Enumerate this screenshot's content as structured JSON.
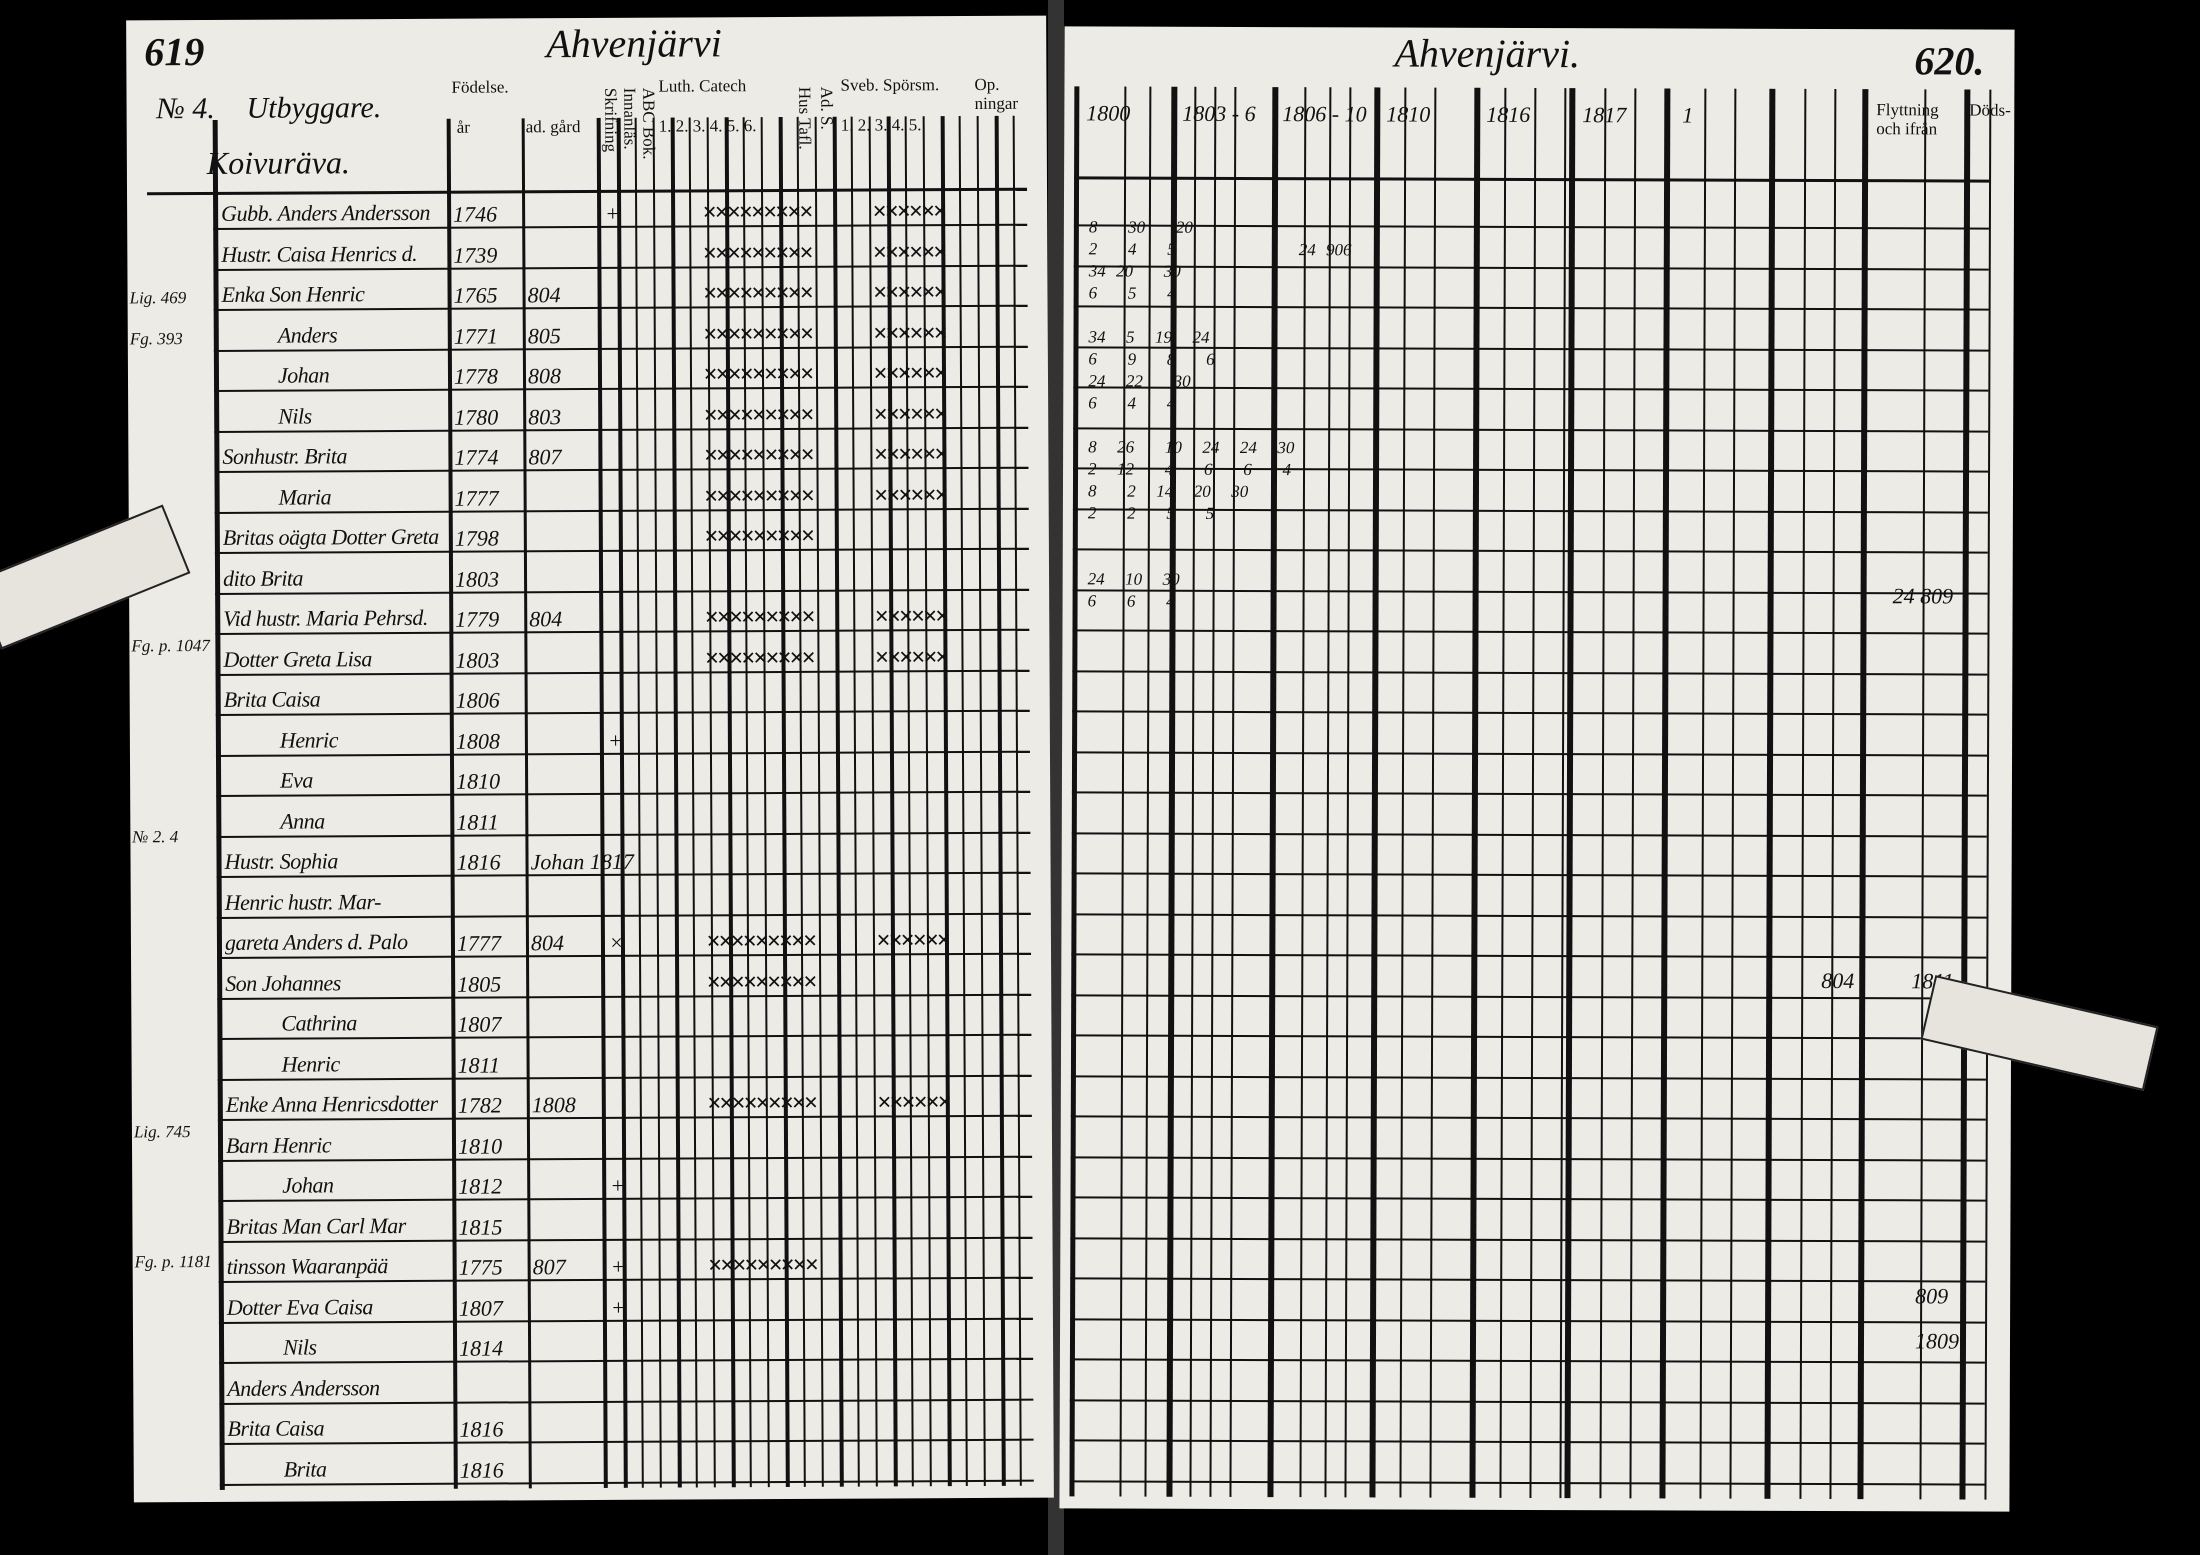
{
  "left_page": {
    "page_number": "619",
    "parish_title": "Ahvenjärvi",
    "household_number": "№ 4.",
    "household_type": "Utbyggare.",
    "farm_name": "Koivuräva.",
    "headers": [
      "Födelse.",
      "år",
      "ad. gård",
      "Skrifning",
      "Innanläs.",
      "ABC Bok.",
      "Luth. Catech",
      "1. 2. 3. 4. 5. 6.",
      "Hus Tafl.",
      "Ad. S.",
      "Sveb. Spörsm.",
      "1. 2. 3. 4. 5.",
      "Op. ningar"
    ],
    "margin_notes": [
      "Lig. 469",
      "Fg. 393",
      "Fg. p. 1047",
      "№ 2. 4",
      "Lig. 745",
      "Fg. p. 1181"
    ],
    "rows": [
      {
        "name": "Gubb. Anders Andersson",
        "born": "1746",
        "moved": "",
        "note": "+",
        "marks": "ab"
      },
      {
        "name": "Hustr. Caisa Henrics d.",
        "born": "1739",
        "moved": "",
        "note": "",
        "marks": "ab"
      },
      {
        "name": "Enka Son Henric",
        "born": "1765",
        "moved": "804",
        "note": "",
        "marks": "ab"
      },
      {
        "name": "Anders",
        "born": "1771",
        "moved": "805",
        "note": "",
        "marks": "ab"
      },
      {
        "name": "Johan",
        "born": "1778",
        "moved": "808",
        "note": "",
        "marks": "ab"
      },
      {
        "name": "Nils",
        "born": "1780",
        "moved": "803",
        "note": "",
        "marks": "ab"
      },
      {
        "name": "Sonhustr. Brita",
        "born": "1774",
        "moved": "807",
        "note": "",
        "marks": "ab"
      },
      {
        "name": "Maria",
        "born": "1777",
        "moved": "",
        "note": "",
        "marks": "ab"
      },
      {
        "name": "Britas oägta Dotter Greta",
        "born": "1798",
        "moved": "",
        "note": "",
        "marks": "a"
      },
      {
        "name": "dito Brita",
        "born": "1803",
        "moved": "",
        "note": "",
        "marks": ""
      },
      {
        "name": "Vid hustr. Maria Pehrsd.",
        "born": "1779",
        "moved": "804",
        "note": "",
        "marks": "ab"
      },
      {
        "name": "Dotter Greta Lisa",
        "born": "1803",
        "moved": "",
        "note": "",
        "marks": "ab"
      },
      {
        "name": "Brita Caisa",
        "born": "1806",
        "moved": "",
        "note": "",
        "marks": ""
      },
      {
        "name": "Henric",
        "born": "1808",
        "moved": "",
        "note": "+",
        "marks": ""
      },
      {
        "name": "Eva",
        "born": "1810",
        "moved": "",
        "note": "",
        "marks": ""
      },
      {
        "name": "Anna",
        "born": "1811",
        "moved": "",
        "note": "",
        "marks": ""
      },
      {
        "name": "Hustr. Sophia",
        "born": "1816",
        "moved": "Johan 1817",
        "note": "",
        "marks": ""
      },
      {
        "name": "Henric hustr. Mar-",
        "born": "",
        "moved": "",
        "note": "",
        "marks": ""
      },
      {
        "name": "gareta Anders d. Palo",
        "born": "1777",
        "moved": "804",
        "note": "×",
        "marks": "ab"
      },
      {
        "name": "Son Johannes",
        "born": "1805",
        "moved": "",
        "note": "",
        "marks": "a"
      },
      {
        "name": "Cathrina",
        "born": "1807",
        "moved": "",
        "note": "",
        "marks": ""
      },
      {
        "name": "Henric",
        "born": "1811",
        "moved": "",
        "note": "",
        "marks": ""
      },
      {
        "name": "Enke Anna Henricsdotter",
        "born": "1782",
        "moved": "1808",
        "note": "",
        "marks": "ab"
      },
      {
        "name": "Barn Henric",
        "born": "1810",
        "moved": "",
        "note": "",
        "marks": ""
      },
      {
        "name": "Johan",
        "born": "1812",
        "moved": "",
        "note": "+",
        "marks": ""
      },
      {
        "name": "Britas Man Carl Mar",
        "born": "1815",
        "moved": "",
        "note": "",
        "marks": ""
      },
      {
        "name": "tinsson Waaranpää",
        "born": "1775",
        "moved": "807",
        "note": "+",
        "marks": "a"
      },
      {
        "name": "Dotter Eva Caisa",
        "born": "1807",
        "moved": "",
        "note": "+",
        "marks": ""
      },
      {
        "name": "Nils",
        "born": "1814",
        "moved": "",
        "note": "",
        "marks": ""
      },
      {
        "name": "Anders Andersson",
        "born": "",
        "moved": "",
        "note": "",
        "marks": ""
      },
      {
        "name": "Brita Caisa",
        "born": "1816",
        "moved": "",
        "note": "",
        "marks": ""
      },
      {
        "name": "Brita",
        "born": "1816",
        "moved": "",
        "note": "",
        "marks": ""
      }
    ]
  },
  "right_page": {
    "page_number": "620.",
    "parish_title": "Ahvenjärvi.",
    "year_headers": [
      "1800",
      "1803 - 6",
      "1806 - 10",
      "1810",
      "1816",
      "1817",
      "1"
    ],
    "moving_header": "Flyttning och ifrån",
    "death_header": "Döds-",
    "entries": [
      {
        "row": 1,
        "text": "8   30   20"
      },
      {
        "row": 2,
        "text": "2   4   5            24 906"
      },
      {
        "row": 3,
        "text": "34 20   30"
      },
      {
        "row": 4,
        "text": "6   5   4"
      },
      {
        "row": 6,
        "text": "34  5  19  24"
      },
      {
        "row": 7,
        "text": "6   9   8   6"
      },
      {
        "row": 8,
        "text": "24  22   30"
      },
      {
        "row": 9,
        "text": "6   4   4"
      },
      {
        "row": 11,
        "text": "8  26   10  24  24  30"
      },
      {
        "row": 12,
        "text": "2  12   4   6   6   4"
      },
      {
        "row": 13,
        "text": "8   2  14  20  30"
      },
      {
        "row": 14,
        "text": "2   2   5   5"
      },
      {
        "row": 17,
        "text": "24  10  30"
      },
      {
        "row": 18,
        "text": "6   6   4"
      }
    ],
    "right_notes": [
      "24 809",
      "804",
      "1811",
      "809",
      "1809"
    ]
  }
}
